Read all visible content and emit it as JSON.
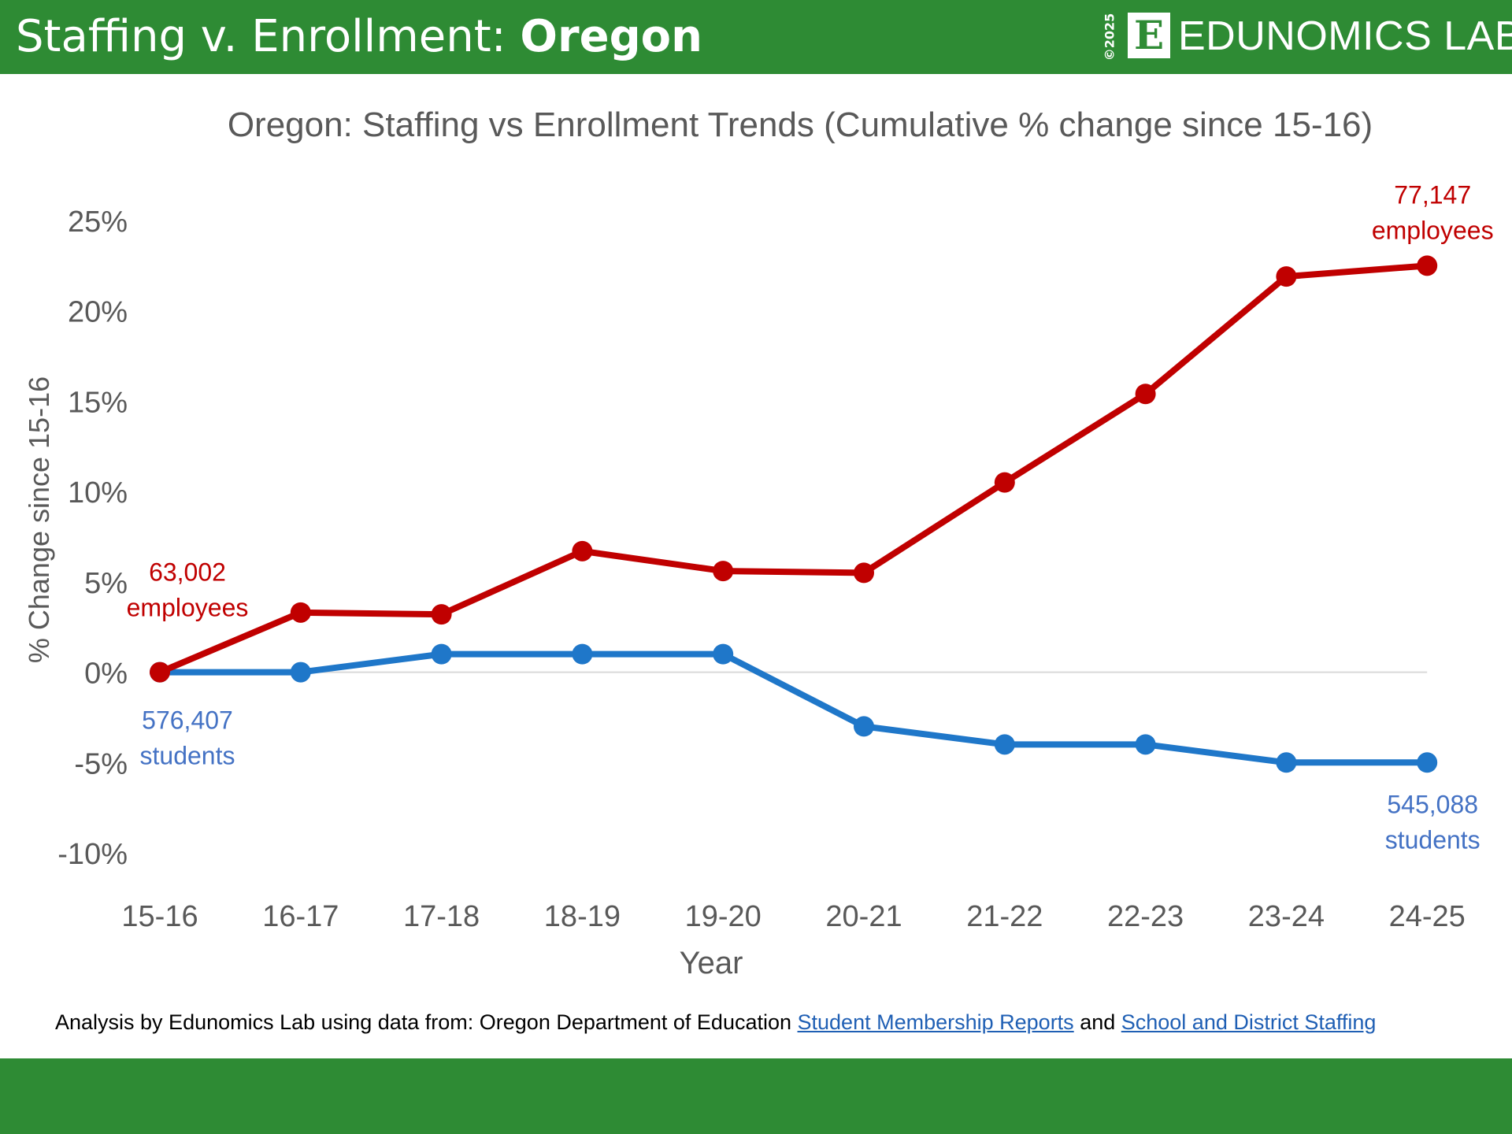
{
  "header": {
    "title_prefix": "Staffing v. Enrollment: ",
    "title_state": "Oregon",
    "copyright": "©2025",
    "logo_letter": "E",
    "brand": "EDUNOMICS LAB"
  },
  "colors": {
    "header_green": "#2E8B34",
    "staff_red": "#C00000",
    "students_blue": "#1F77C9",
    "students_label_blue": "#4472C4",
    "link_blue": "#1F5FB4"
  },
  "source": {
    "prefix": "Analysis by Edunomics Lab using data from: Oregon Department of Education ",
    "link1": "Student Membership Reports",
    "middle": " and ",
    "link2": "School and District Staffing"
  },
  "chart_data": {
    "type": "line",
    "title": "Oregon: Staffing vs Enrollment Trends (Cumulative % change since 15-16)",
    "xlabel": "Year",
    "ylabel": "% Change since 15-16",
    "categories": [
      "15-16",
      "16-17",
      "17-18",
      "18-19",
      "19-20",
      "20-21",
      "21-22",
      "22-23",
      "23-24",
      "24-25"
    ],
    "ylim": [
      -10,
      25
    ],
    "yticks": [
      25,
      20,
      15,
      10,
      5,
      0,
      -5,
      -10
    ],
    "ytick_labels": [
      "25%",
      "20%",
      "15%",
      "10%",
      "5%",
      "0%",
      "-5%",
      "-10%"
    ],
    "grid": false,
    "series": [
      {
        "key": "staff",
        "values": [
          0,
          3.3,
          3.2,
          6.7,
          5.6,
          5.5,
          10.5,
          15.4,
          21.9,
          22.5
        ],
        "color": "#C00000",
        "start_label": [
          "63,002",
          "employees"
        ],
        "end_label": [
          "77,147",
          "employees"
        ]
      },
      {
        "key": "students",
        "values": [
          0,
          0,
          1,
          1,
          1,
          -3,
          -4,
          -4,
          -5,
          -5
        ],
        "color": "#1F77C9",
        "label_color": "#4472C4",
        "start_label": [
          "576,407",
          "students"
        ],
        "end_label": [
          "545,088",
          "students"
        ]
      }
    ]
  }
}
